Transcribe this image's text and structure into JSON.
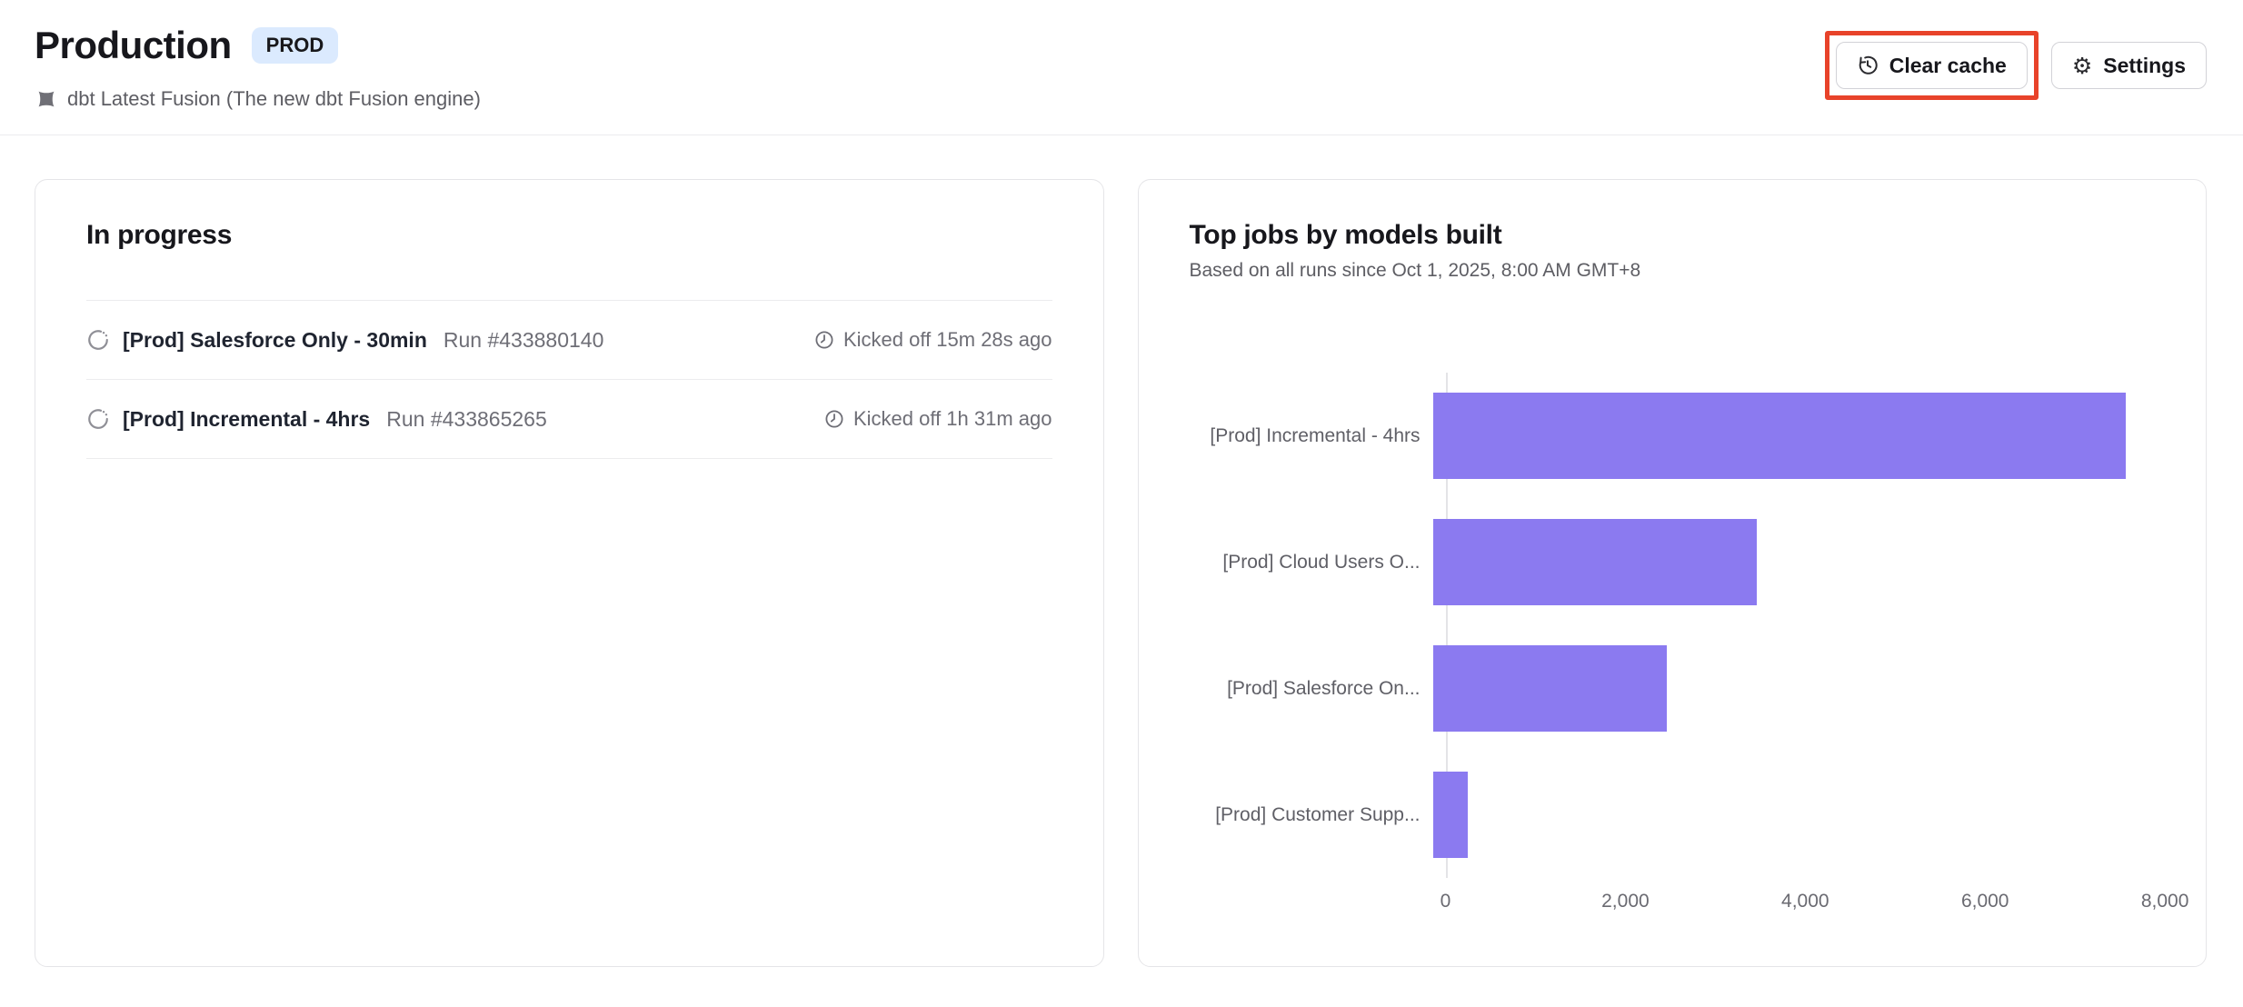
{
  "header": {
    "title": "Production",
    "badge": "PROD",
    "subtitle": "dbt Latest Fusion (The new dbt Fusion engine)",
    "clear_cache_label": "Clear cache",
    "settings_label": "Settings",
    "gear_glyph": "⚙",
    "annotation_color": "#e8432a"
  },
  "in_progress": {
    "title": "In progress",
    "runs": [
      {
        "job": "[Prod] Salesforce Only - 30min",
        "run": "Run #433880140",
        "kicked_off": "Kicked off 15m 28s ago"
      },
      {
        "job": "[Prod] Incremental - 4hrs",
        "run": "Run #433865265",
        "kicked_off": "Kicked off 1h 31m ago"
      }
    ]
  },
  "chart": {
    "title": "Top jobs by models built",
    "subtitle": "Based on all runs since Oct 1, 2025, 8:00 AM GMT+8"
  },
  "chart_data": {
    "type": "bar",
    "orientation": "horizontal",
    "title": "Top jobs by models built",
    "categories": [
      "[Prod] Incremental - 4hrs",
      "[Prod] Cloud Users O...",
      "[Prod] Salesforce On...",
      "[Prod] Customer Supp..."
    ],
    "values": [
      7700,
      3600,
      2600,
      380
    ],
    "x_ticks": [
      0,
      2000,
      4000,
      6000,
      8000
    ],
    "x_tick_labels": [
      "0",
      "2,000",
      "4,000",
      "6,000",
      "8,000"
    ],
    "xlim": [
      0,
      8600
    ],
    "bar_color": "#8b7af0",
    "grid": false,
    "legend": false
  }
}
